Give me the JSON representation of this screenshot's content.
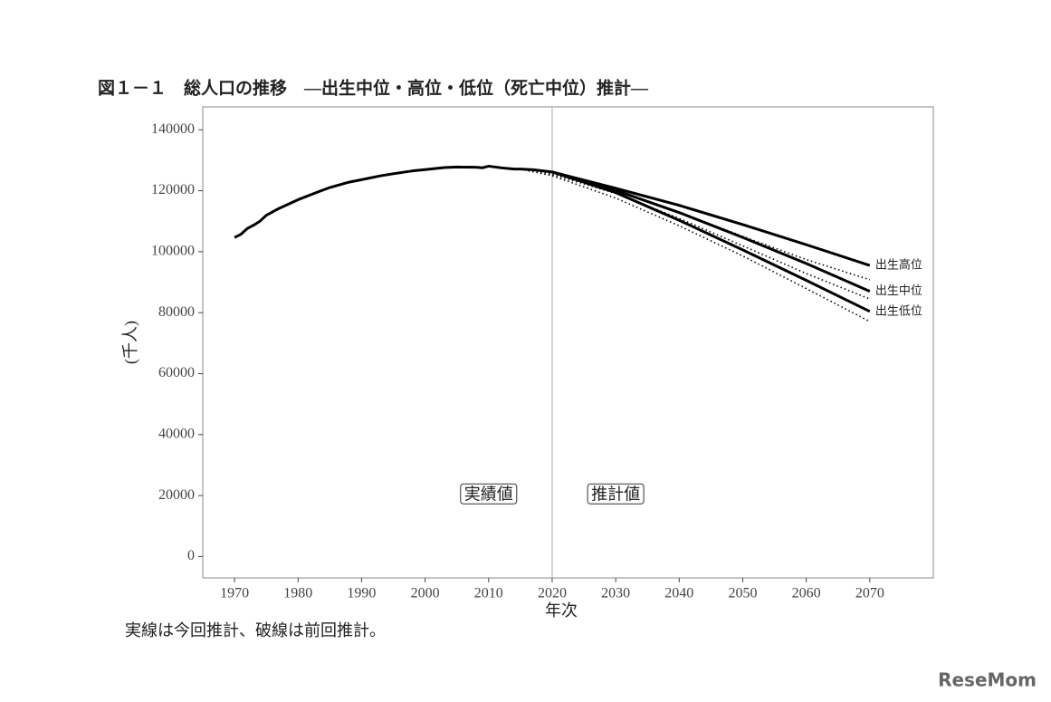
{
  "chart_data": {
    "type": "line",
    "title": "図１－１　総人口の推移　—出生中位・高位・低位（死亡中位）推計—",
    "x_label": "年次",
    "y_label": "(千人)",
    "note": "実線は今回推計、破線は前回推計。",
    "watermark": "ReseMom",
    "xlim": [
      1965,
      2080
    ],
    "ylim": [
      -7000,
      147500
    ],
    "xticks": [
      1970,
      1980,
      1990,
      2000,
      2010,
      2020,
      2030,
      2040,
      2050,
      2060,
      2070
    ],
    "yticks": [
      0,
      20000,
      40000,
      60000,
      80000,
      100000,
      120000,
      140000
    ],
    "vline": 2020,
    "annotations": [
      {
        "text": "実績値",
        "x": 2010,
        "y": 20000
      },
      {
        "text": "推計値",
        "x": 2030,
        "y": 20000
      }
    ],
    "series": [
      {
        "color": "#000000",
        "style": "solid",
        "x": [
          1970,
          1971,
          1972,
          1973,
          1974,
          1975,
          1977,
          1980,
          1983,
          1985,
          1988,
          1990,
          1993,
          1995,
          1998,
          2000,
          2003,
          2005,
          2008,
          2009,
          2010,
          2012,
          2014,
          2015,
          2017,
          2020
        ],
        "values": [
          104665,
          105700,
          107595,
          108700,
          110000,
          111940,
          114200,
          117060,
          119500,
          121049,
          122800,
          123611,
          124900,
          125570,
          126500,
          126926,
          127600,
          127768,
          127692,
          127510,
          128057,
          127500,
          127100,
          127095,
          126900,
          126146
        ]
      },
      {
        "name": "出生高位",
        "color": "#000000",
        "style": "solid",
        "x": [
          2020,
          2030,
          2040,
          2050,
          2060,
          2070
        ],
        "values": [
          126146,
          120800,
          115200,
          108900,
          102300,
          95500
        ]
      },
      {
        "name": "出生中位",
        "color": "#000000",
        "style": "solid",
        "x": [
          2020,
          2030,
          2040,
          2050,
          2060,
          2070
        ],
        "values": [
          126146,
          120116,
          112837,
          104686,
          96148,
          86996
        ]
      },
      {
        "name": "出生低位",
        "color": "#000000",
        "style": "solid",
        "x": [
          2020,
          2030,
          2040,
          2050,
          2060,
          2070
        ],
        "values": [
          126146,
          119400,
          110300,
          100600,
          90600,
          80400
        ]
      },
      {
        "color": "#000000",
        "style": "dotted",
        "x": [
          2015,
          2020,
          2030,
          2040,
          2050,
          2060,
          2070
        ],
        "values": [
          127095,
          125720,
          120000,
          113000,
          105000,
          97400,
          90800
        ]
      },
      {
        "color": "#000000",
        "style": "dotted",
        "x": [
          2015,
          2020,
          2030,
          2040,
          2050,
          2060,
          2070
        ],
        "values": [
          127095,
          125325,
          119125,
          110919,
          101923,
          92840,
          84500
        ]
      },
      {
        "color": "#000000",
        "style": "dotted",
        "x": [
          2015,
          2020,
          2030,
          2040,
          2050,
          2060,
          2070
        ],
        "values": [
          127095,
          124900,
          117600,
          108500,
          98600,
          87900,
          77100
        ]
      }
    ]
  }
}
